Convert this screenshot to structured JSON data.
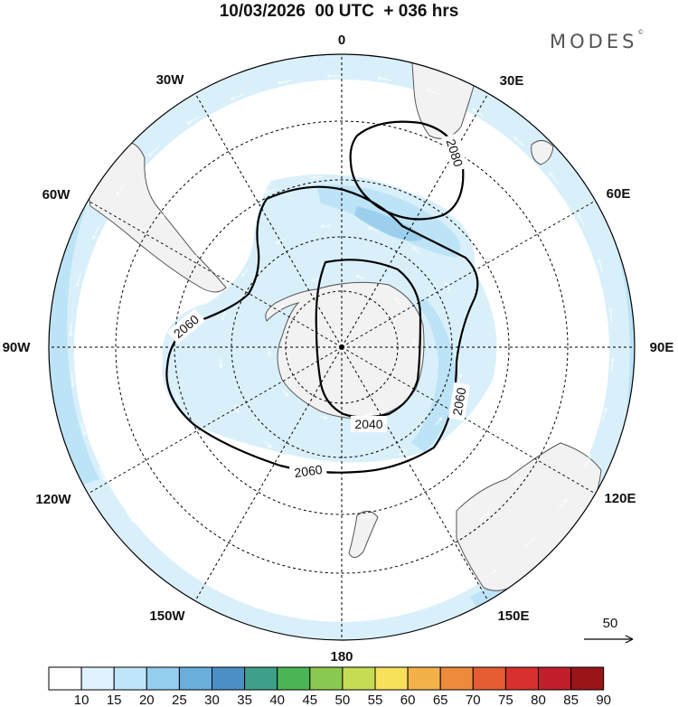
{
  "header": {
    "title": "10/03/2026  00 UTC  + 036 hrs",
    "brand": "MODES",
    "brand_mark": "©"
  },
  "map": {
    "projection": "south-polar-stereographic",
    "center": "South Pole",
    "longitude_labels": [
      "0",
      "30E",
      "60E",
      "90E",
      "120E",
      "150E",
      "180",
      "150W",
      "120W",
      "90W",
      "60W",
      "30W"
    ],
    "contour_labels": [
      "2080",
      "2060",
      "2040",
      "2060",
      "2060"
    ],
    "wind_reference_label": "50",
    "colors": {
      "land": "#f2f2f2",
      "coast": "#555555",
      "shade_light": "#d9f0fb",
      "shade_mid": "#bde3f6",
      "shade_dark": "#9ccfee",
      "contour": "#000000"
    }
  },
  "colorbar": {
    "labels": [
      "10",
      "15",
      "20",
      "25",
      "30",
      "35",
      "40",
      "45",
      "50",
      "55",
      "60",
      "65",
      "70",
      "75",
      "80",
      "85",
      "90"
    ],
    "colors": [
      "#ffffff",
      "#dff2fd",
      "#bfe5f8",
      "#95cdef",
      "#6aaedc",
      "#4a8fc6",
      "#3fa08a",
      "#4bb556",
      "#8ac94f",
      "#c6dd53",
      "#f8e15a",
      "#f3b249",
      "#ee8a3c",
      "#e65c33",
      "#d8302e",
      "#c11e2c",
      "#9a1519"
    ]
  }
}
